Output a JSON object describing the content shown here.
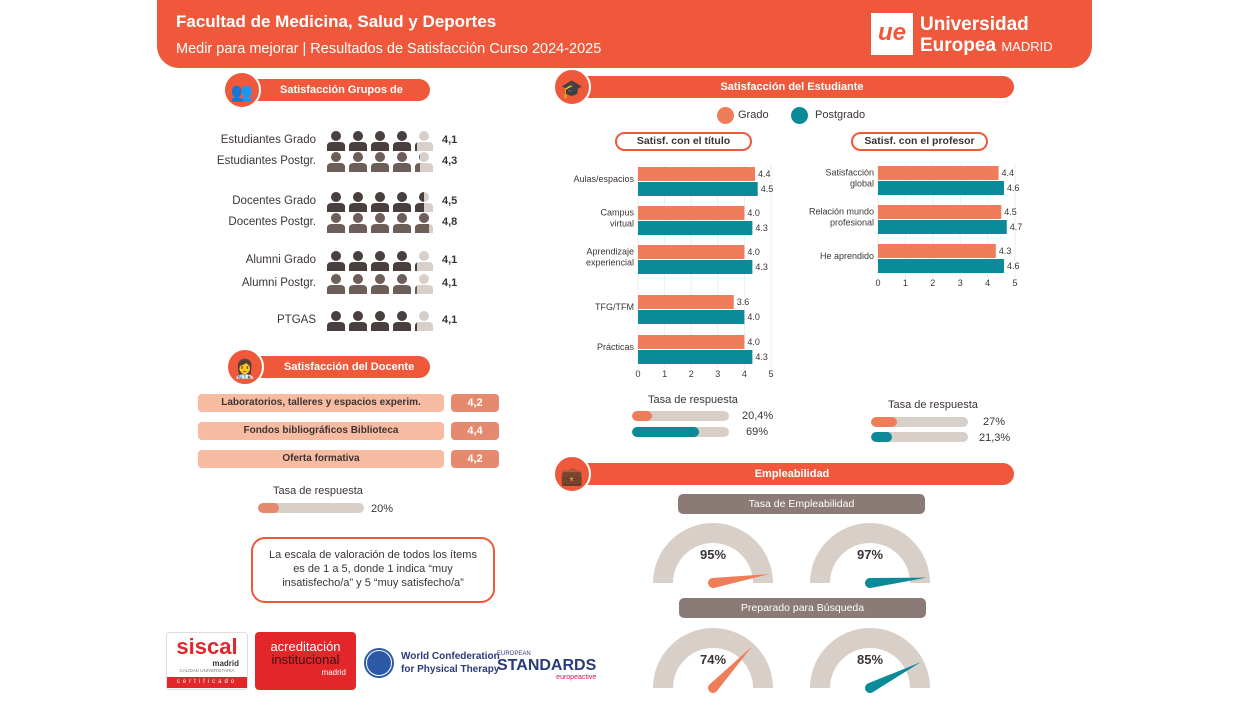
{
  "header": {
    "title": "Facultad de Medicina, Salud y Deportes",
    "subtitle": "Medir para mejorar | Resultados de Satisfacción Curso 2024-2025",
    "logo_mark": "ue",
    "logo_line1": "Universidad",
    "logo_line2": "Europea",
    "logo_line2_suffix": "MADRID"
  },
  "colors": {
    "brand": "#f0583c",
    "grado": "#f07d5a",
    "postgrado": "#0b8a9a",
    "dark": "#4a3f3f",
    "mid": "#6e5e5a",
    "light": "#d8cfc8"
  },
  "grupos": {
    "title": "Satisfacción Grupos de Interés",
    "icon": "group-icon",
    "rows": [
      {
        "label": "Estudiantes Grado",
        "value": 4.1,
        "text": "4,1",
        "tone": "dark"
      },
      {
        "label": "Estudiantes Postgr.",
        "value": 4.3,
        "text": "4,3",
        "tone": "mid"
      },
      {
        "label": "Docentes Grado",
        "value": 4.5,
        "text": "4,5",
        "tone": "dark"
      },
      {
        "label": "Docentes Postgr.",
        "value": 4.8,
        "text": "4,8",
        "tone": "mid"
      },
      {
        "label": "Alumni Grado",
        "value": 4.1,
        "text": "4,1",
        "tone": "dark"
      },
      {
        "label": "Alumni Postgr.",
        "value": 4.1,
        "text": "4,1",
        "tone": "mid"
      },
      {
        "label": "PTGAS",
        "value": 4.1,
        "text": "4,1",
        "tone": "dark"
      }
    ]
  },
  "docente": {
    "title": "Satisfacción del Docente",
    "icon": "teachers-icon",
    "items": [
      {
        "label": "Laboratorios, talleres y espacios experim.",
        "value": "4,2"
      },
      {
        "label": "Fondos bibliográficos Biblioteca",
        "value": "4,4"
      },
      {
        "label": "Oferta formativa",
        "value": "4,2"
      }
    ],
    "tasa_label": "Tasa de respuesta",
    "tasa_value": 20,
    "tasa_text": "20%"
  },
  "note": "La escala de valoración de todos los ítems es de 1 a 5, donde 1 indica “muy insatisfecho/a” y 5 “muy satisfecho/a”",
  "estudiante": {
    "title": "Satisfacción del Estudiante",
    "icon": "graduates-icon",
    "legend": [
      "Grado",
      "Postgrado"
    ]
  },
  "chart_data": [
    {
      "type": "bar",
      "title": "Satisf. con el título",
      "categories": [
        "Aulas/espacios",
        "Campus virtual",
        "Aprendizaje experiencial",
        "TFG/TFM",
        "Prácticas"
      ],
      "series": [
        {
          "name": "Grado",
          "values": [
            4.4,
            4.0,
            4.0,
            3.6,
            4.0
          ]
        },
        {
          "name": "Postgrado",
          "values": [
            4.5,
            4.3,
            4.3,
            4.0,
            4.3
          ]
        }
      ],
      "xlim": [
        0,
        5
      ],
      "ticks": [
        "0",
        "1",
        "2",
        "3",
        "4",
        "5"
      ],
      "legend": "top"
    },
    {
      "type": "bar",
      "title": "Satisf. con el profesor",
      "categories": [
        "Satisfacción global",
        "Relación mundo profesional",
        "He aprendido"
      ],
      "series": [
        {
          "name": "Grado",
          "values": [
            4.4,
            4.5,
            4.3
          ]
        },
        {
          "name": "Postgrado",
          "values": [
            4.6,
            4.7,
            4.6
          ]
        }
      ],
      "xlim": [
        0,
        5
      ],
      "ticks": [
        "0",
        "1",
        "2",
        "3",
        "4",
        "5"
      ],
      "legend": "top"
    }
  ],
  "tasa_titulo": {
    "label": "Tasa de respuesta",
    "grado": 20.4,
    "grado_text": "20,4%",
    "postgrado": 69,
    "postgrado_text": "69%"
  },
  "tasa_profesor": {
    "label": "Tasa de respuesta",
    "grado": 27,
    "grado_text": "27%",
    "postgrado": 21.3,
    "postgrado_text": "21,3%"
  },
  "empleabilidad": {
    "title": "Empleabilidad",
    "icon": "briefcase-icon",
    "gauges": [
      {
        "title": "Tasa de Empleabilidad",
        "grado": 95,
        "grado_text": "95%",
        "postgrado": 97,
        "postgrado_text": "97%"
      },
      {
        "title": "Preparado para Búsqueda",
        "grado": 74,
        "grado_text": "74%",
        "postgrado": 85,
        "postgrado_text": "85%"
      }
    ]
  },
  "logos": {
    "siscal": "siscal",
    "siscal_sub": "madrid",
    "siscal_caption": "CALIDAD UNIVERSITARIA",
    "siscal_cert": "certificado",
    "acred_l1": "acreditación",
    "acred_l2": "institucional",
    "acred_l3": "madrid",
    "wcpt_l1": "World Confederation",
    "wcpt_l2": "for Physical Therapy",
    "eu_l1": "EUROPEAN",
    "eu_l2": "STANDARDS",
    "eu_l3": "europeactive"
  }
}
